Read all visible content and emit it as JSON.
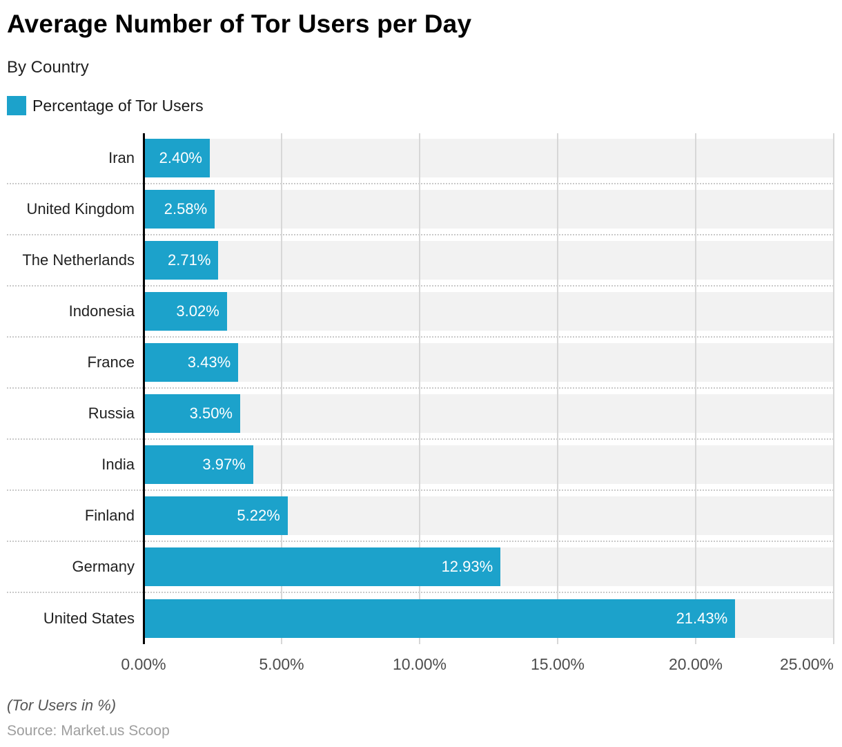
{
  "header": {
    "title": "Average Number of Tor Users per Day",
    "subtitle": "By Country",
    "legend": {
      "label": "Percentage of Tor Users",
      "swatch_color": "#1CA2CB"
    }
  },
  "chart_data": {
    "type": "bar",
    "orientation": "horizontal",
    "title": "Average Number of Tor Users per Day",
    "subtitle": "By Country",
    "series_name": "Percentage of Tor Users",
    "categories": [
      "Iran",
      "United Kingdom",
      "The Netherlands",
      "Indonesia",
      "France",
      "Russia",
      "India",
      "Finland",
      "Germany",
      "United States"
    ],
    "values": [
      2.4,
      2.58,
      2.71,
      3.02,
      3.43,
      3.5,
      3.97,
      5.22,
      12.93,
      21.43
    ],
    "value_labels": [
      "2.40%",
      "2.58%",
      "2.71%",
      "3.02%",
      "3.43%",
      "3.50%",
      "3.97%",
      "5.22%",
      "12.93%",
      "21.43%"
    ],
    "xlim": [
      0,
      25
    ],
    "x_tick_values": [
      0,
      5,
      10,
      15,
      20,
      25
    ],
    "x_ticks": [
      "0.00%",
      "5.00%",
      "10.00%",
      "15.00%",
      "20.00%",
      "25.00%"
    ],
    "grid": true,
    "legend_position": "top-left",
    "bar_color": "#1CA2CB",
    "track_color": "#f2f2f2",
    "gridline_color": "#d7d7d7"
  },
  "footer": {
    "note": "(Tor Users in %)",
    "source": "Source: Market.us Scoop"
  }
}
